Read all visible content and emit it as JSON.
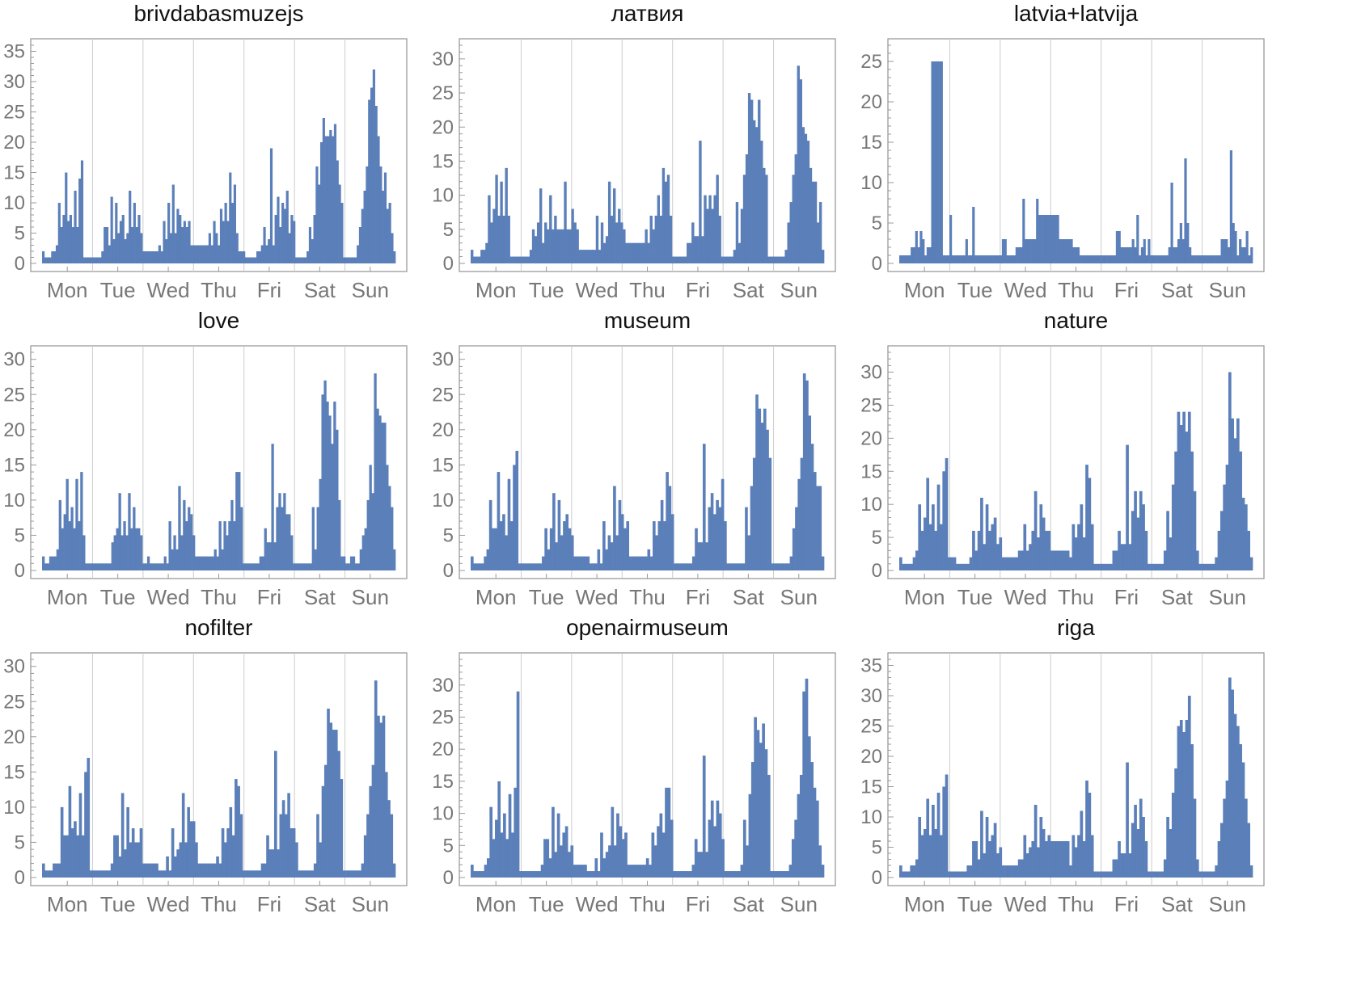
{
  "chart_data": [
    {
      "type": "bar",
      "title": "brivdabasmuzejs",
      "days": [
        "Mon",
        "Tue",
        "Wed",
        "Thu",
        "Fri",
        "Sat",
        "Sun"
      ],
      "ylim": [
        0,
        36
      ],
      "yticks": [
        0,
        5,
        10,
        15,
        20,
        25,
        30,
        35
      ],
      "bar_color": "#5b7fb9",
      "values": [
        2,
        1,
        1,
        1,
        2,
        2,
        3,
        10,
        6,
        8,
        15,
        7,
        8,
        6,
        12,
        6,
        14,
        17,
        1,
        1,
        1,
        1,
        1,
        1,
        1,
        1,
        2,
        6,
        6,
        3,
        11,
        4,
        10,
        5,
        7,
        8,
        4,
        5,
        12,
        6,
        10,
        6,
        8,
        5,
        2,
        2,
        2,
        2,
        2,
        2,
        2,
        3,
        2,
        7,
        4,
        10,
        5,
        13,
        5,
        9,
        8,
        6,
        7,
        6,
        7,
        3,
        3,
        3,
        3,
        3,
        3,
        3,
        3,
        5,
        3,
        7,
        5,
        3,
        9,
        7,
        10,
        7,
        15,
        10,
        13,
        5,
        2,
        2,
        2,
        1,
        1,
        1,
        1,
        1,
        2,
        2,
        3,
        6,
        3,
        4,
        19,
        3,
        8,
        11,
        6,
        10,
        9,
        12,
        5,
        8,
        7,
        1,
        1,
        1,
        1,
        1,
        2,
        6,
        4,
        8,
        16,
        13,
        20,
        24,
        21,
        21,
        22,
        21,
        23,
        17,
        13,
        10,
        1,
        1,
        1,
        1,
        1,
        1,
        3,
        6,
        9,
        12,
        16,
        27,
        29,
        32,
        26,
        21,
        16,
        12,
        15,
        9,
        10,
        5,
        2
      ]
    },
    {
      "type": "bar",
      "title": "латвия",
      "days": [
        "Mon",
        "Tue",
        "Wed",
        "Thu",
        "Fri",
        "Sat",
        "Sun"
      ],
      "ylim": [
        0,
        32
      ],
      "yticks": [
        0,
        5,
        10,
        15,
        20,
        25,
        30
      ],
      "bar_color": "#5b7fb9",
      "values": [
        2,
        1,
        1,
        1,
        2,
        2,
        3,
        10,
        6,
        8,
        13,
        7,
        12,
        7,
        14,
        7,
        1,
        1,
        1,
        1,
        1,
        1,
        1,
        1,
        2,
        5,
        4,
        6,
        11,
        3,
        6,
        5,
        10,
        5,
        7,
        5,
        5,
        5,
        12,
        5,
        5,
        8,
        6,
        5,
        2,
        2,
        2,
        2,
        2,
        2,
        2,
        7,
        2,
        6,
        3,
        4,
        12,
        7,
        11,
        6,
        8,
        6,
        5,
        3,
        3,
        3,
        3,
        3,
        3,
        3,
        3,
        5,
        3,
        7,
        5,
        7,
        10,
        7,
        14,
        12,
        13,
        7,
        1,
        1,
        1,
        1,
        1,
        1,
        3,
        3,
        6,
        4,
        4,
        18,
        4,
        10,
        8,
        10,
        8,
        10,
        13,
        7,
        1,
        1,
        1,
        1,
        1,
        2,
        9,
        3,
        8,
        13,
        16,
        25,
        24,
        21,
        20,
        24,
        18,
        14,
        13,
        1,
        1,
        1,
        1,
        1,
        1,
        1,
        2,
        6,
        9,
        13,
        16,
        29,
        27,
        20,
        19,
        18,
        14,
        12,
        12,
        6,
        9,
        2
      ]
    },
    {
      "type": "bar",
      "title": "latvia+latvija",
      "days": [
        "Mon",
        "Tue",
        "Wed",
        "Thu",
        "Fri",
        "Sat",
        "Sun"
      ],
      "ylim": [
        0,
        27
      ],
      "yticks": [
        0,
        5,
        10,
        15,
        20,
        25
      ],
      "bar_color": "#5b7fb9",
      "values": [
        1,
        1,
        1,
        1,
        1,
        2,
        2,
        4,
        2,
        4,
        3,
        1,
        2,
        2,
        25,
        25,
        25,
        25,
        25,
        1,
        1,
        1,
        6,
        1,
        1,
        1,
        1,
        1,
        1,
        3,
        1,
        1,
        7,
        1,
        1,
        1,
        1,
        1,
        1,
        1,
        1,
        1,
        1,
        1,
        1,
        3,
        3,
        1,
        1,
        1,
        1,
        2,
        2,
        2,
        8,
        3,
        3,
        3,
        3,
        3,
        8,
        6,
        6,
        6,
        6,
        6,
        6,
        6,
        6,
        6,
        3,
        3,
        3,
        3,
        3,
        3,
        2,
        2,
        2,
        1,
        1,
        1,
        1,
        1,
        1,
        1,
        1,
        1,
        1,
        1,
        1,
        1,
        1,
        1,
        1,
        4,
        4,
        2,
        2,
        2,
        2,
        2,
        3,
        2,
        6,
        1,
        2,
        3,
        1,
        3,
        1,
        1,
        1,
        1,
        1,
        1,
        1,
        1,
        2,
        10,
        2,
        2,
        3,
        5,
        3,
        13,
        5,
        2,
        1,
        1,
        1,
        1,
        1,
        1,
        1,
        1,
        1,
        1,
        1,
        1,
        1,
        3,
        3,
        3,
        2,
        14,
        5,
        4,
        1,
        3,
        2,
        2,
        4,
        1,
        2
      ]
    },
    {
      "type": "bar",
      "title": "love",
      "days": [
        "Mon",
        "Tue",
        "Wed",
        "Thu",
        "Fri",
        "Sat",
        "Sun"
      ],
      "ylim": [
        0,
        31
      ],
      "yticks": [
        0,
        5,
        10,
        15,
        20,
        25,
        30
      ],
      "bar_color": "#5b7fb9",
      "values": [
        2,
        1,
        1,
        2,
        2,
        2,
        3,
        10,
        6,
        8,
        13,
        7,
        9,
        6,
        13,
        7,
        14,
        5,
        1,
        1,
        1,
        1,
        1,
        1,
        1,
        1,
        1,
        1,
        1,
        4,
        5,
        6,
        11,
        5,
        7,
        5,
        11,
        6,
        9,
        6,
        6,
        5,
        1,
        1,
        2,
        1,
        1,
        1,
        1,
        1,
        1,
        2,
        1,
        7,
        3,
        5,
        3,
        12,
        5,
        10,
        7,
        9,
        8,
        5,
        2,
        2,
        2,
        2,
        2,
        2,
        2,
        2,
        3,
        2,
        7,
        3,
        7,
        5,
        7,
        10,
        7,
        14,
        14,
        9,
        1,
        1,
        1,
        1,
        1,
        1,
        1,
        2,
        2,
        6,
        4,
        4,
        18,
        4,
        9,
        11,
        9,
        11,
        8,
        8,
        5,
        1,
        1,
        1,
        1,
        1,
        1,
        1,
        1,
        9,
        3,
        9,
        13,
        25,
        27,
        24,
        22,
        18,
        24,
        20,
        10,
        2,
        2,
        1,
        1,
        2,
        2,
        1,
        1,
        3,
        5,
        6,
        10,
        15,
        11,
        28,
        23,
        22,
        21,
        21,
        15,
        12,
        9,
        3
      ]
    },
    {
      "type": "bar",
      "title": "museum",
      "days": [
        "Mon",
        "Tue",
        "Wed",
        "Thu",
        "Fri",
        "Sat",
        "Sun"
      ],
      "ylim": [
        0,
        31
      ],
      "yticks": [
        0,
        5,
        10,
        15,
        20,
        25,
        30
      ],
      "bar_color": "#5b7fb9",
      "values": [
        2,
        1,
        1,
        1,
        1,
        2,
        3,
        10,
        6,
        6,
        14,
        7,
        8,
        5,
        13,
        7,
        15,
        17,
        1,
        1,
        1,
        1,
        1,
        1,
        1,
        1,
        1,
        2,
        6,
        3,
        6,
        11,
        4,
        10,
        5,
        7,
        8,
        6,
        5,
        2,
        2,
        2,
        2,
        2,
        2,
        1,
        1,
        1,
        3,
        1,
        7,
        3,
        5,
        4,
        12,
        5,
        10,
        8,
        6,
        7,
        2,
        2,
        2,
        2,
        2,
        2,
        2,
        3,
        2,
        7,
        5,
        7,
        10,
        7,
        14,
        12,
        8,
        1,
        1,
        1,
        1,
        1,
        1,
        1,
        2,
        6,
        4,
        4,
        18,
        4,
        9,
        11,
        8,
        10,
        9,
        13,
        7,
        1,
        1,
        1,
        1,
        1,
        1,
        1,
        9,
        5,
        12,
        16,
        25,
        23,
        21,
        23,
        20,
        16,
        1,
        1,
        1,
        1,
        1,
        1,
        1,
        2,
        6,
        9,
        13,
        16,
        28,
        27,
        22,
        18,
        14,
        12,
        12,
        2
      ]
    },
    {
      "type": "bar",
      "title": "nature",
      "days": [
        "Mon",
        "Tue",
        "Wed",
        "Thu",
        "Fri",
        "Sat",
        "Sun"
      ],
      "ylim": [
        0,
        33
      ],
      "yticks": [
        0,
        5,
        10,
        15,
        20,
        25,
        30
      ],
      "bar_color": "#5b7fb9",
      "values": [
        2,
        1,
        1,
        1,
        1,
        2,
        3,
        10,
        6,
        8,
        14,
        7,
        10,
        6,
        13,
        7,
        15,
        17,
        2,
        2,
        2,
        1,
        1,
        1,
        1,
        1,
        2,
        6,
        3,
        6,
        11,
        4,
        10,
        6,
        7,
        8,
        4,
        5,
        2,
        2,
        2,
        2,
        2,
        2,
        3,
        3,
        7,
        3,
        4,
        6,
        12,
        5,
        10,
        8,
        6,
        6,
        3,
        3,
        3,
        3,
        3,
        3,
        3,
        2,
        7,
        5,
        7,
        10,
        5,
        16,
        14,
        7,
        1,
        1,
        1,
        1,
        1,
        1,
        1,
        3,
        3,
        6,
        4,
        4,
        19,
        4,
        9,
        12,
        8,
        12,
        10,
        6,
        1,
        1,
        1,
        1,
        1,
        1,
        3,
        9,
        5,
        13,
        18,
        24,
        22,
        24,
        21,
        24,
        18,
        12,
        3,
        1,
        1,
        1,
        1,
        1,
        1,
        2,
        6,
        9,
        13,
        16,
        30,
        23,
        20,
        23,
        18,
        11,
        10,
        6,
        2
      ]
    },
    {
      "type": "bar",
      "title": "nofilter",
      "days": [
        "Mon",
        "Tue",
        "Wed",
        "Thu",
        "Fri",
        "Sat",
        "Sun"
      ],
      "ylim": [
        0,
        31
      ],
      "yticks": [
        0,
        5,
        10,
        15,
        20,
        25,
        30
      ],
      "bar_color": "#5b7fb9",
      "values": [
        2,
        1,
        1,
        1,
        2,
        2,
        2,
        10,
        6,
        6,
        13,
        7,
        8,
        6,
        12,
        6,
        15,
        17,
        1,
        1,
        1,
        1,
        1,
        1,
        1,
        1,
        2,
        6,
        6,
        3,
        12,
        4,
        10,
        5,
        7,
        5,
        5,
        7,
        2,
        2,
        2,
        2,
        2,
        2,
        1,
        1,
        1,
        3,
        1,
        7,
        3,
        4,
        5,
        12,
        5,
        10,
        8,
        8,
        5,
        2,
        2,
        2,
        2,
        2,
        2,
        2,
        3,
        2,
        7,
        5,
        7,
        10,
        6,
        14,
        13,
        9,
        1,
        1,
        1,
        1,
        1,
        1,
        1,
        2,
        2,
        6,
        4,
        4,
        18,
        4,
        9,
        11,
        9,
        12,
        7,
        7,
        5,
        1,
        1,
        1,
        1,
        1,
        1,
        2,
        9,
        5,
        13,
        16,
        24,
        22,
        21,
        21,
        18,
        14,
        1,
        1,
        1,
        1,
        1,
        1,
        1,
        2,
        6,
        9,
        13,
        16,
        28,
        23,
        22,
        23,
        15,
        11,
        9,
        2
      ]
    },
    {
      "type": "bar",
      "title": "openairmuseum",
      "days": [
        "Mon",
        "Tue",
        "Wed",
        "Thu",
        "Fri",
        "Sat",
        "Sun"
      ],
      "ylim": [
        0,
        34
      ],
      "yticks": [
        0,
        5,
        10,
        15,
        20,
        25,
        30
      ],
      "bar_color": "#5b7fb9",
      "values": [
        2,
        1,
        1,
        1,
        1,
        2,
        3,
        11,
        6,
        9,
        15,
        7,
        10,
        6,
        13,
        7,
        14,
        29,
        1,
        1,
        1,
        1,
        1,
        1,
        1,
        1,
        2,
        6,
        6,
        3,
        11,
        4,
        10,
        5,
        7,
        8,
        4,
        5,
        2,
        2,
        2,
        2,
        2,
        1,
        1,
        1,
        3,
        1,
        7,
        3,
        4,
        5,
        11,
        5,
        10,
        8,
        6,
        7,
        2,
        2,
        2,
        2,
        2,
        2,
        2,
        3,
        2,
        7,
        5,
        8,
        10,
        7,
        14,
        14,
        9,
        1,
        1,
        1,
        1,
        1,
        1,
        1,
        2,
        6,
        4,
        4,
        19,
        4,
        9,
        12,
        8,
        12,
        10,
        6,
        1,
        1,
        1,
        1,
        1,
        1,
        2,
        9,
        5,
        13,
        18,
        25,
        23,
        21,
        24,
        20,
        16,
        1,
        1,
        1,
        1,
        1,
        1,
        1,
        2,
        6,
        9,
        13,
        16,
        29,
        31,
        22,
        18,
        14,
        12,
        5,
        2
      ]
    },
    {
      "type": "bar",
      "title": "riga",
      "days": [
        "Mon",
        "Tue",
        "Wed",
        "Thu",
        "Fri",
        "Sat",
        "Sun"
      ],
      "ylim": [
        0,
        36
      ],
      "yticks": [
        0,
        5,
        10,
        15,
        20,
        25,
        30,
        35
      ],
      "bar_color": "#5b7fb9",
      "values": [
        2,
        1,
        1,
        1,
        2,
        2,
        3,
        10,
        7,
        8,
        13,
        7,
        12,
        8,
        14,
        7,
        15,
        17,
        1,
        1,
        1,
        1,
        1,
        1,
        1,
        2,
        2,
        6,
        6,
        3,
        11,
        4,
        10,
        6,
        7,
        9,
        4,
        5,
        2,
        2,
        2,
        2,
        2,
        2,
        3,
        3,
        7,
        4,
        5,
        6,
        12,
        5,
        10,
        8,
        6,
        7,
        6,
        6,
        6,
        6,
        6,
        6,
        6,
        2,
        7,
        5,
        7,
        11,
        6,
        16,
        14,
        7,
        1,
        1,
        1,
        1,
        1,
        1,
        1,
        3,
        3,
        6,
        4,
        4,
        19,
        4,
        9,
        12,
        8,
        13,
        10,
        6,
        1,
        1,
        1,
        1,
        1,
        1,
        3,
        10,
        8,
        14,
        18,
        25,
        26,
        24,
        26,
        30,
        22,
        13,
        3,
        1,
        1,
        1,
        1,
        1,
        1,
        2,
        6,
        9,
        13,
        16,
        33,
        31,
        27,
        25,
        22,
        19,
        13,
        9,
        2
      ]
    }
  ]
}
